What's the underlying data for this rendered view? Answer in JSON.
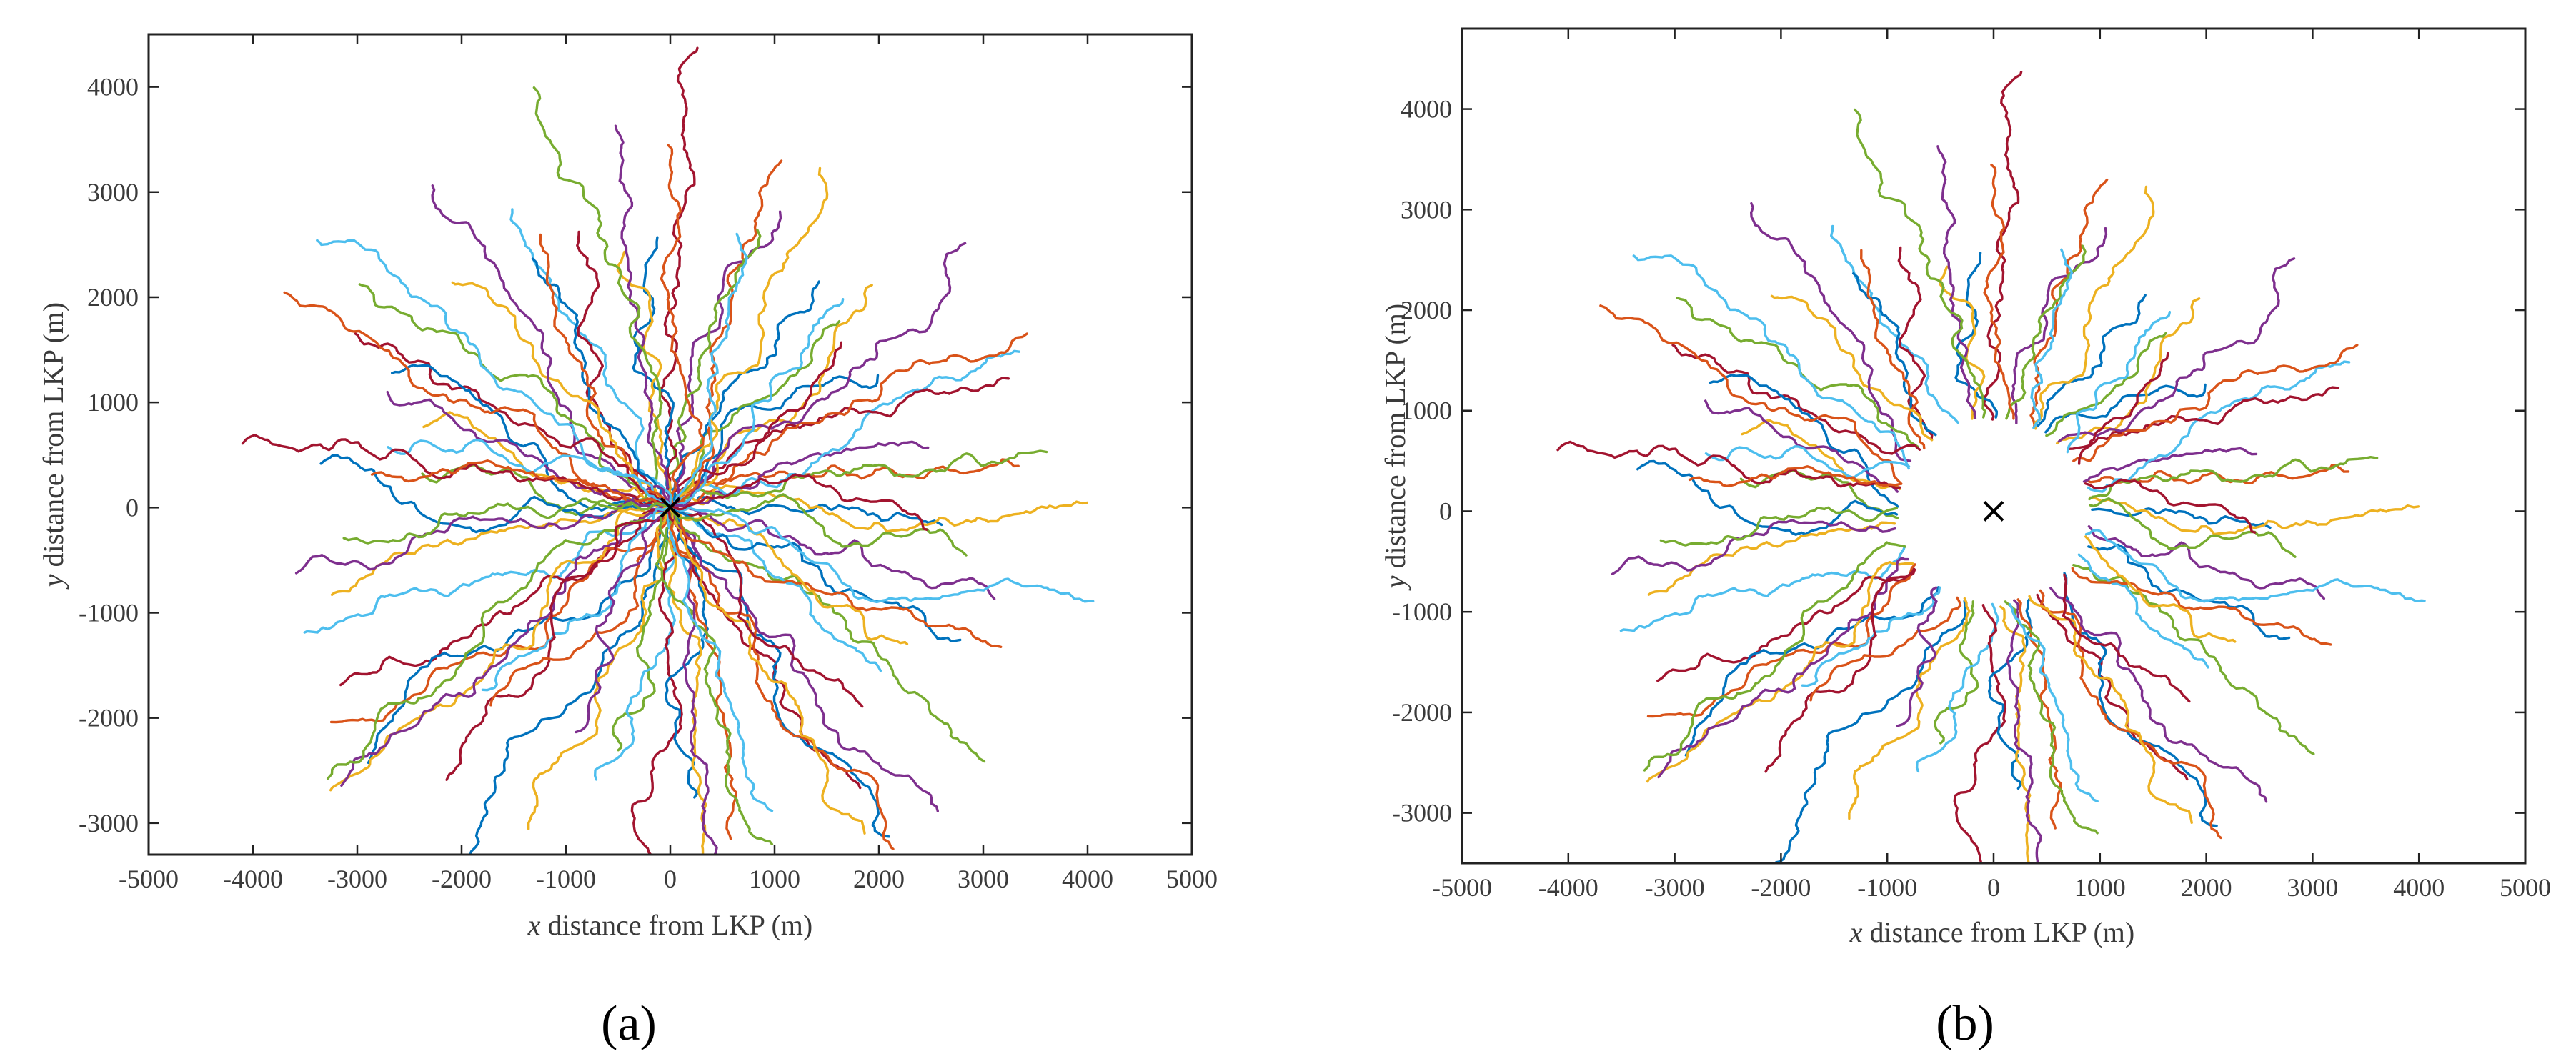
{
  "colors": {
    "palette": [
      "#0072BD",
      "#D95319",
      "#EDB120",
      "#7E2F8E",
      "#77AC30",
      "#4DBEEE",
      "#A2142F"
    ],
    "frame": "#222222",
    "text": "#3a3a3a",
    "lkp_marker": "#000000"
  },
  "chart_data": [
    {
      "type": "line",
      "panel_label": "(a)",
      "xlabel_prefix": "x",
      "xlabel_rest": " distance from LKP (m)",
      "ylabel_prefix": "y",
      "ylabel_rest": " distance from LKP (m)",
      "xlim": [
        -5000,
        5000
      ],
      "ylim": [
        -3300,
        4500
      ],
      "xticks": [
        "-5000",
        "-4000",
        "-3000",
        "-2000",
        "-1000",
        "0",
        "1000",
        "2000",
        "3000",
        "4000",
        "5000"
      ],
      "yticks": [
        "-3000",
        "-2000",
        "-1000",
        "0",
        "1000",
        "2000",
        "3000",
        "4000"
      ],
      "lkp": [
        0,
        0
      ],
      "lkp_marker": "×",
      "start_radius": 0,
      "series_count": 84,
      "description_of_series": "random-walk search paths radiating outward from the LKP"
    },
    {
      "type": "line",
      "panel_label": "(b)",
      "xlabel_prefix": "x",
      "xlabel_rest": " distance from LKP (m)",
      "ylabel_prefix": "y",
      "ylabel_rest": " distance from LKP (m)",
      "xlim": [
        -5000,
        5000
      ],
      "ylim": [
        -3500,
        4800
      ],
      "xticks": [
        "-5000",
        "-4000",
        "-3000",
        "-2000",
        "-1000",
        "0",
        "1000",
        "2000",
        "3000",
        "4000",
        "5000"
      ],
      "yticks": [
        "-3000",
        "-2000",
        "-1000",
        "0",
        "1000",
        "2000",
        "3000",
        "4000"
      ],
      "lkp": [
        0,
        0
      ],
      "lkp_marker": "×",
      "start_radius": 900,
      "series_count": 84,
      "description_of_series": "same paths with the initial segment near the LKP removed"
    }
  ]
}
